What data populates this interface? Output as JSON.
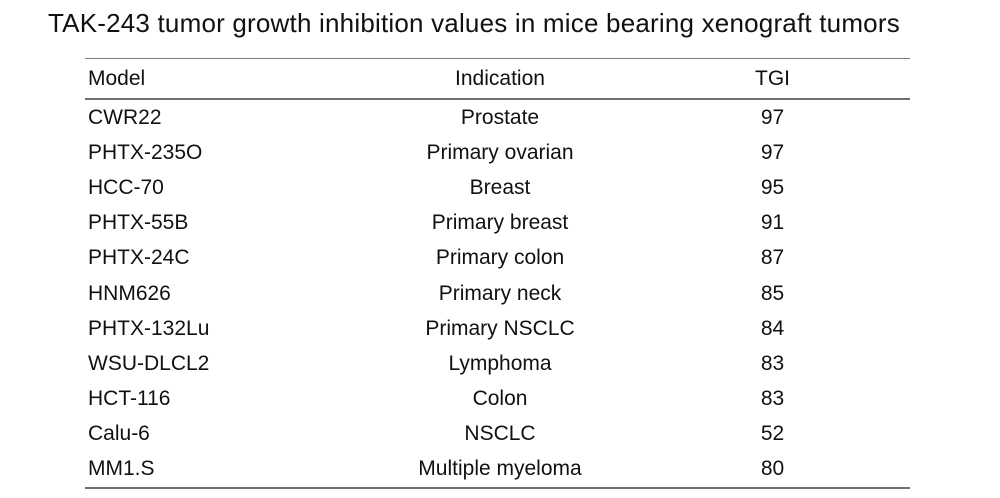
{
  "title": "TAK-243 tumor growth inhibition values in mice bearing xenograft tumors",
  "table": {
    "columns": [
      {
        "key": "model",
        "label": "Model"
      },
      {
        "key": "indication",
        "label": "Indication"
      },
      {
        "key": "tgi",
        "label": "TGI"
      }
    ],
    "rows": [
      {
        "model": "CWR22",
        "indication": "Prostate",
        "tgi": "97"
      },
      {
        "model": "PHTX-235O",
        "indication": "Primary ovarian",
        "tgi": "97"
      },
      {
        "model": "HCC-70",
        "indication": "Breast",
        "tgi": "95"
      },
      {
        "model": "PHTX-55B",
        "indication": "Primary breast",
        "tgi": "91"
      },
      {
        "model": "PHTX-24C",
        "indication": "Primary colon",
        "tgi": "87"
      },
      {
        "model": "HNM626",
        "indication": "Primary neck",
        "tgi": "85"
      },
      {
        "model": "PHTX-132Lu",
        "indication": "Primary NSCLC",
        "tgi": "84"
      },
      {
        "model": "WSU-DLCL2",
        "indication": "Lymphoma",
        "tgi": "83"
      },
      {
        "model": "HCT-116",
        "indication": "Colon",
        "tgi": "83"
      },
      {
        "model": "Calu-6",
        "indication": "NSCLC",
        "tgi": "52"
      },
      {
        "model": "MM1.S",
        "indication": "Multiple myeloma",
        "tgi": "80"
      }
    ]
  },
  "chart_data": {
    "type": "table",
    "title": "TAK-243 tumor growth inhibition values in mice bearing xenograft tumors",
    "columns": [
      "Model",
      "Indication",
      "TGI"
    ],
    "categories": [
      "CWR22",
      "PHTX-235O",
      "HCC-70",
      "PHTX-55B",
      "PHTX-24C",
      "HNM626",
      "PHTX-132Lu",
      "WSU-DLCL2",
      "HCT-116",
      "Calu-6",
      "MM1.S"
    ],
    "indications": [
      "Prostate",
      "Primary ovarian",
      "Breast",
      "Primary breast",
      "Primary colon",
      "Primary neck",
      "Primary NSCLC",
      "Lymphoma",
      "Colon",
      "NSCLC",
      "Multiple myeloma"
    ],
    "values": [
      97,
      97,
      95,
      91,
      87,
      85,
      84,
      83,
      83,
      52,
      80
    ]
  },
  "colors": {
    "background": "#ffffff",
    "text": "#111111",
    "rule": "#6f6f6f"
  }
}
